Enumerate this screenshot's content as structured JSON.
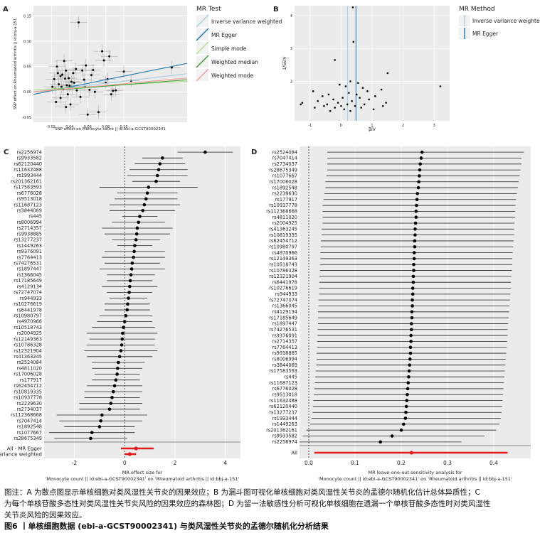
{
  "figure_title": "图6 丨单核细胞数据 (ebi-a-GCST90002341) 与类风湿性关节炎的孟德尔随机化分析结果",
  "caption": "图注：A 为散点图显示单核细胞对类风湿性关节炎的因果效应；B 为漏斗图可视化单核细胞对类风湿性关节炎的孟德尔随机化估计总体异质性；C 为每个单核苷酸多态性对类风湿性关节炎风险的因果效应的森林图；D 为留一法敏感性分析可视化单核细胞在遗漏一个单核苷酸多态性时对类风湿性关节炎风险的因果效应。",
  "caption_lines": [
    "图注：A 为散点图显示单核细胞对类风湿性关节炎的因果效应；B 为漏斗图可视化单核细胞对类风湿性关节炎的孟德尔随机化估计总体异质性；C",
    "为每个单核苷酸多态性对类风湿性关节炎风险的因果效应的森林图；D 为留一法敏感性分析可视化单核细胞在遗漏一个单核苷酸多态性时对类风湿性",
    "关节炎风险的因果效应。"
  ],
  "chart_data": [
    {
      "panel": "A",
      "type": "scatter",
      "xlabel": "SNP effect on Monocyte count || id:ebi-a-GCST90002341",
      "ylabel": "SNP effect on Rheumatoid arthritis || id:bbj-a-151",
      "xlim": [
        0,
        0.17
      ],
      "ylim": [
        -0.06,
        0.17
      ],
      "xticks": [
        0.02,
        0.04,
        0.06,
        0.08,
        0.1
      ],
      "yticks": [
        -0.05,
        0.0,
        0.05,
        0.1,
        0.15
      ],
      "xtick_labels": [
        "0.02",
        "0.04",
        "0.06",
        "0.08",
        "0.10"
      ],
      "ytick_labels": [
        "-0.05",
        "0.00",
        "0.05",
        "0.10",
        "0.15"
      ],
      "legend_title": "MR Test",
      "legend_position": "right",
      "grid": true,
      "lines": [
        {
          "name": "Inverse variance weighted",
          "color": "#a6cee3",
          "intercept": 0.0,
          "slope": 0.21
        },
        {
          "name": "MR Egger",
          "color": "#1f78b4",
          "intercept": -0.005,
          "slope": 0.36
        },
        {
          "name": "Simple mode",
          "color": "#b2df8a",
          "intercept": 0.004,
          "slope": 0.1
        },
        {
          "name": "Weighted median",
          "color": "#33a02c",
          "intercept": 0.0,
          "slope": 0.14
        },
        {
          "name": "Weighted mode",
          "color": "#fb9a99",
          "intercept": 0.0,
          "slope": 0.16
        }
      ],
      "points": [
        {
          "x": 0.021,
          "y": 0.01
        },
        {
          "x": 0.023,
          "y": 0.025
        },
        {
          "x": 0.024,
          "y": 0.006
        },
        {
          "x": 0.025,
          "y": -0.02
        },
        {
          "x": 0.026,
          "y": 0.05
        },
        {
          "x": 0.027,
          "y": 0.037
        },
        {
          "x": 0.028,
          "y": 0.015
        },
        {
          "x": 0.03,
          "y": 0.031
        },
        {
          "x": 0.03,
          "y": -0.012
        },
        {
          "x": 0.031,
          "y": 0.01
        },
        {
          "x": 0.032,
          "y": 0.034
        },
        {
          "x": 0.033,
          "y": 0.005
        },
        {
          "x": 0.034,
          "y": 0.061
        },
        {
          "x": 0.035,
          "y": 0.026
        },
        {
          "x": 0.036,
          "y": -0.03
        },
        {
          "x": 0.036,
          "y": 0.042
        },
        {
          "x": 0.037,
          "y": 0.013
        },
        {
          "x": 0.038,
          "y": -0.005
        },
        {
          "x": 0.039,
          "y": 0.027
        },
        {
          "x": 0.04,
          "y": 0.012
        },
        {
          "x": 0.041,
          "y": -0.025
        },
        {
          "x": 0.042,
          "y": 0.02
        },
        {
          "x": 0.043,
          "y": 0.008
        },
        {
          "x": 0.044,
          "y": 0.037
        },
        {
          "x": 0.045,
          "y": 0.018
        },
        {
          "x": 0.047,
          "y": 0.045
        },
        {
          "x": 0.048,
          "y": 0.003
        },
        {
          "x": 0.05,
          "y": 0.137
        },
        {
          "x": 0.052,
          "y": -0.01
        },
        {
          "x": 0.054,
          "y": 0.042
        },
        {
          "x": 0.056,
          "y": 0.024
        },
        {
          "x": 0.057,
          "y": 0.01
        },
        {
          "x": 0.058,
          "y": 0.052
        },
        {
          "x": 0.06,
          "y": -0.045
        },
        {
          "x": 0.062,
          "y": 0.004
        },
        {
          "x": 0.064,
          "y": 0.033
        },
        {
          "x": 0.066,
          "y": 0.043
        },
        {
          "x": 0.068,
          "y": 0.0
        },
        {
          "x": 0.072,
          "y": -0.04
        },
        {
          "x": 0.076,
          "y": 0.08
        },
        {
          "x": 0.078,
          "y": 0.062
        },
        {
          "x": 0.08,
          "y": 0.018
        },
        {
          "x": 0.082,
          "y": 0.025
        },
        {
          "x": 0.084,
          "y": 0.07
        },
        {
          "x": 0.086,
          "y": -0.005
        },
        {
          "x": 0.088,
          "y": 0.002
        },
        {
          "x": 0.091,
          "y": 0.003
        },
        {
          "x": 0.1,
          "y": 0.04
        },
        {
          "x": 0.108,
          "y": 0.022
        },
        {
          "x": 0.153,
          "y": 0.048
        }
      ]
    },
    {
      "panel": "B",
      "type": "scatter",
      "xlabel": "βIV",
      "ylabel": "1/SEIV",
      "xlim": [
        -1.5,
        3.5
      ],
      "ylim": [
        0.8,
        4.3
      ],
      "xticks": [
        -1,
        0,
        1,
        2,
        3
      ],
      "yticks": [
        2,
        3,
        4
      ],
      "xtick_labels": [
        "-1",
        "0",
        "1",
        "2",
        "3"
      ],
      "ytick_labels": [
        "2",
        "3",
        "4"
      ],
      "legend_title": "MR Method",
      "legend_position": "right",
      "grid": true,
      "vlines": [
        {
          "name": "Inverse variance weighted",
          "color": "#a6cee3",
          "x": 0.21
        },
        {
          "name": "MR Egger",
          "color": "#1f78b4",
          "x": 0.48
        }
      ],
      "points": [
        {
          "x": 0.38,
          "y": 4.25
        },
        {
          "x": 0.4,
          "y": 3.2
        },
        {
          "x": -0.2,
          "y": 2.65
        },
        {
          "x": 1.5,
          "y": 2.25
        },
        {
          "x": 0.3,
          "y": 2.0
        },
        {
          "x": 0.55,
          "y": 1.95
        },
        {
          "x": -0.05,
          "y": 1.9
        },
        {
          "x": 0.15,
          "y": 1.85
        },
        {
          "x": 0.7,
          "y": 1.8
        },
        {
          "x": 1.3,
          "y": 1.75
        },
        {
          "x": 0.85,
          "y": 1.7
        },
        {
          "x": -0.9,
          "y": 1.7
        },
        {
          "x": 0.25,
          "y": 1.65
        },
        {
          "x": -0.4,
          "y": 1.6
        },
        {
          "x": 0.5,
          "y": 1.6
        },
        {
          "x": 1.1,
          "y": 1.55
        },
        {
          "x": -0.6,
          "y": 1.55
        },
        {
          "x": 0.05,
          "y": 1.5
        },
        {
          "x": 0.6,
          "y": 1.5
        },
        {
          "x": -0.25,
          "y": 1.45
        },
        {
          "x": 0.9,
          "y": 1.45
        },
        {
          "x": -0.75,
          "y": 1.4
        },
        {
          "x": 0.35,
          "y": 1.4
        },
        {
          "x": -0.1,
          "y": 1.35
        },
        {
          "x": 1.45,
          "y": 1.35
        },
        {
          "x": 0.2,
          "y": 1.3
        },
        {
          "x": -0.45,
          "y": 1.3
        },
        {
          "x": 0.75,
          "y": 1.3
        },
        {
          "x": -1.3,
          "y": 1.3
        },
        {
          "x": 0.0,
          "y": 1.25
        },
        {
          "x": 1.35,
          "y": 1.25
        },
        {
          "x": -0.55,
          "y": 1.25
        },
        {
          "x": 0.45,
          "y": 1.25
        },
        {
          "x": -0.2,
          "y": 1.2
        },
        {
          "x": 0.65,
          "y": 1.2
        },
        {
          "x": -0.85,
          "y": 1.2
        },
        {
          "x": 0.1,
          "y": 1.15
        },
        {
          "x": 1.05,
          "y": 1.15
        },
        {
          "x": -0.35,
          "y": 1.1
        },
        {
          "x": 0.3,
          "y": 1.1
        },
        {
          "x": 3.2,
          "y": 1.85
        },
        {
          "x": -1.25,
          "y": 1.35
        }
      ]
    },
    {
      "panel": "C",
      "type": "forest",
      "xlabel_lines": [
        "MR effect size for",
        "'Monocyte count || id:ebi-a-GCST90002341' on 'Rheumatoid arthritis || id:bbj-a-151'"
      ],
      "xlim": [
        -3.2,
        4.6
      ],
      "xticks": [
        -2,
        0,
        2,
        4
      ],
      "xtick_labels": [
        "-2",
        "0",
        "2",
        "4"
      ],
      "snps": [
        "rs2256974",
        "rs9933582",
        "rs62120440",
        "rs11632488",
        "rs1993444",
        "rs201362161",
        "rs17583593",
        "rs6776028",
        "rs9513018",
        "rs11687123",
        "rs3844069",
        "rs445",
        "rs8006994",
        "rs2714357",
        "rs9938885",
        "rs13277237",
        "rs1449263",
        "rs9376091",
        "rs7764413",
        "rs74276531",
        "rs1897447",
        "rs1366045",
        "rs17185649",
        "rs4129134",
        "rs72747074",
        "rs944933",
        "rs10276619",
        "rs6441978",
        "rs10980797",
        "rs4970966",
        "rs10518743",
        "rs2004925",
        "rs12149363",
        "rs10786328",
        "rs12321904",
        "rs41363245",
        "rs2524084",
        "rs4811020",
        "rs17006028",
        "rs177917",
        "rs62454712",
        "rs10819335",
        "rs10937778",
        "rs2239630",
        "rs2734037",
        "rs112368668",
        "rs7047414",
        "rs1892548",
        "rs1077667",
        "rs28675349"
      ],
      "estimates": [
        3.2,
        1.5,
        1.4,
        1.35,
        1.3,
        1.25,
        0.95,
        0.9,
        0.85,
        0.78,
        0.72,
        0.6,
        0.55,
        0.5,
        0.48,
        0.45,
        0.4,
        0.38,
        0.35,
        0.3,
        0.28,
        0.25,
        0.22,
        0.2,
        0.18,
        0.15,
        0.12,
        0.1,
        0.05,
        0.0,
        -0.05,
        -0.08,
        -0.1,
        -0.12,
        -0.15,
        -0.2,
        -0.25,
        -0.28,
        -0.3,
        -0.35,
        -0.4,
        -0.45,
        -0.5,
        -0.55,
        -0.6,
        -0.9,
        -0.95,
        -1.0,
        -1.3,
        -1.35
      ],
      "ci_low": [
        2.1,
        0.7,
        0.4,
        0.2,
        0.1,
        0.3,
        -1.0,
        -0.3,
        -0.4,
        -0.6,
        -0.6,
        -0.1,
        -0.5,
        -0.9,
        -0.8,
        -0.5,
        -0.3,
        -0.8,
        -0.9,
        -0.8,
        -1.0,
        -0.7,
        -0.7,
        -0.9,
        -0.7,
        -0.6,
        -0.8,
        -0.8,
        -1.0,
        -1.1,
        -1.3,
        -1.5,
        -1.4,
        -1.5,
        -1.6,
        -1.5,
        -1.3,
        -1.3,
        -1.2,
        -1.3,
        -1.5,
        -1.6,
        -1.6,
        -1.8,
        -1.8,
        -2.7,
        -2.6,
        -2.4,
        -3.0,
        -2.8
      ],
      "ci_high": [
        4.3,
        2.3,
        2.4,
        2.5,
        2.5,
        2.2,
        2.9,
        2.1,
        2.1,
        2.2,
        2.0,
        1.3,
        1.6,
        1.9,
        1.8,
        1.4,
        1.1,
        1.6,
        1.6,
        1.4,
        1.6,
        1.2,
        1.1,
        1.3,
        1.1,
        0.9,
        1.0,
        1.0,
        1.1,
        1.1,
        1.2,
        1.3,
        1.2,
        1.2,
        1.3,
        1.1,
        0.8,
        0.7,
        0.6,
        0.6,
        0.7,
        0.7,
        0.6,
        0.7,
        0.6,
        0.9,
        0.7,
        0.4,
        0.4,
        0.1
      ],
      "summary": [
        {
          "label": "All - MR Egger",
          "estimate": 0.45,
          "low": -0.15,
          "high": 1.15
        },
        {
          "label": "variance weighted",
          "estimate": 0.2,
          "low": 0.0,
          "high": 0.45
        }
      ]
    },
    {
      "panel": "D",
      "type": "forest",
      "xlabel_lines": [
        "MR leave-one-out sensitivity analysis for",
        "'Monocyte count || id:ebi-a-GCST90002341' on 'Rheumatoid arthritis || id:bbj-a-151'"
      ],
      "xlim": [
        -0.02,
        0.48
      ],
      "xticks": [
        0.0,
        0.1,
        0.2,
        0.3,
        0.4
      ],
      "xtick_labels": [
        "0.0",
        "0.1",
        "0.2",
        "0.3",
        "0.4"
      ],
      "snps": [
        "rs2524084",
        "rs7047414",
        "rs2734037",
        "rs28675349",
        "rs1077667",
        "rs17006028",
        "rs1892548",
        "rs2239630",
        "rs177917",
        "rs10937778",
        "rs112368668",
        "rs4811020",
        "rs2004925",
        "rs41363245",
        "rs10819335",
        "rs62454712",
        "rs10980797",
        "rs4970966",
        "rs12149363",
        "rs10518743",
        "rs10786328",
        "rs12321904",
        "rs6441978",
        "rs10276619",
        "rs944933",
        "rs72747074",
        "rs1366045",
        "rs4129134",
        "rs17185649",
        "rs1897447",
        "rs74276531",
        "rs9376091",
        "rs2714357",
        "rs7764413",
        "rs9938885",
        "rs8006994",
        "rs3844069",
        "rs17583593",
        "rs445",
        "rs11687123",
        "rs6776028",
        "rs9513018",
        "rs11632488",
        "rs62120440",
        "rs13277237",
        "rs1993444",
        "rs1449263",
        "rs201362161",
        "rs9933582",
        "rs2256974"
      ],
      "estimates": [
        0.245,
        0.243,
        0.241,
        0.24,
        0.239,
        0.238,
        0.237,
        0.235,
        0.234,
        0.233,
        0.232,
        0.232,
        0.231,
        0.23,
        0.23,
        0.229,
        0.229,
        0.228,
        0.228,
        0.227,
        0.227,
        0.226,
        0.226,
        0.225,
        0.225,
        0.224,
        0.224,
        0.223,
        0.223,
        0.222,
        0.222,
        0.221,
        0.221,
        0.22,
        0.22,
        0.219,
        0.218,
        0.217,
        0.216,
        0.215,
        0.214,
        0.213,
        0.212,
        0.211,
        0.21,
        0.209,
        0.205,
        0.2,
        0.18,
        0.155
      ],
      "ci_low": [
        0.04,
        0.04,
        0.04,
        0.04,
        0.038,
        0.036,
        0.036,
        0.034,
        0.032,
        0.03,
        0.03,
        0.03,
        0.03,
        0.028,
        0.028,
        0.026,
        0.026,
        0.025,
        0.025,
        0.024,
        0.024,
        0.023,
        0.023,
        0.022,
        0.022,
        0.021,
        0.021,
        0.02,
        0.02,
        0.02,
        0.019,
        0.019,
        0.018,
        0.018,
        0.017,
        0.017,
        0.016,
        0.015,
        0.014,
        0.013,
        0.012,
        0.011,
        0.01,
        0.009,
        0.008,
        0.006,
        0.003,
        -0.005,
        -0.012,
        -0.02
      ],
      "ci_high": [
        0.465,
        0.46,
        0.46,
        0.458,
        0.456,
        0.454,
        0.452,
        0.45,
        0.448,
        0.447,
        0.446,
        0.446,
        0.445,
        0.444,
        0.444,
        0.443,
        0.442,
        0.441,
        0.44,
        0.44,
        0.439,
        0.438,
        0.437,
        0.437,
        0.436,
        0.435,
        0.434,
        0.433,
        0.432,
        0.431,
        0.43,
        0.43,
        0.429,
        0.428,
        0.427,
        0.426,
        0.425,
        0.424,
        0.423,
        0.422,
        0.421,
        0.42,
        0.419,
        0.418,
        0.417,
        0.415,
        0.412,
        0.405,
        0.38,
        0.33
      ],
      "summary": [
        {
          "label": "All",
          "estimate": 0.222,
          "low": 0.012,
          "high": 0.43
        }
      ]
    }
  ]
}
